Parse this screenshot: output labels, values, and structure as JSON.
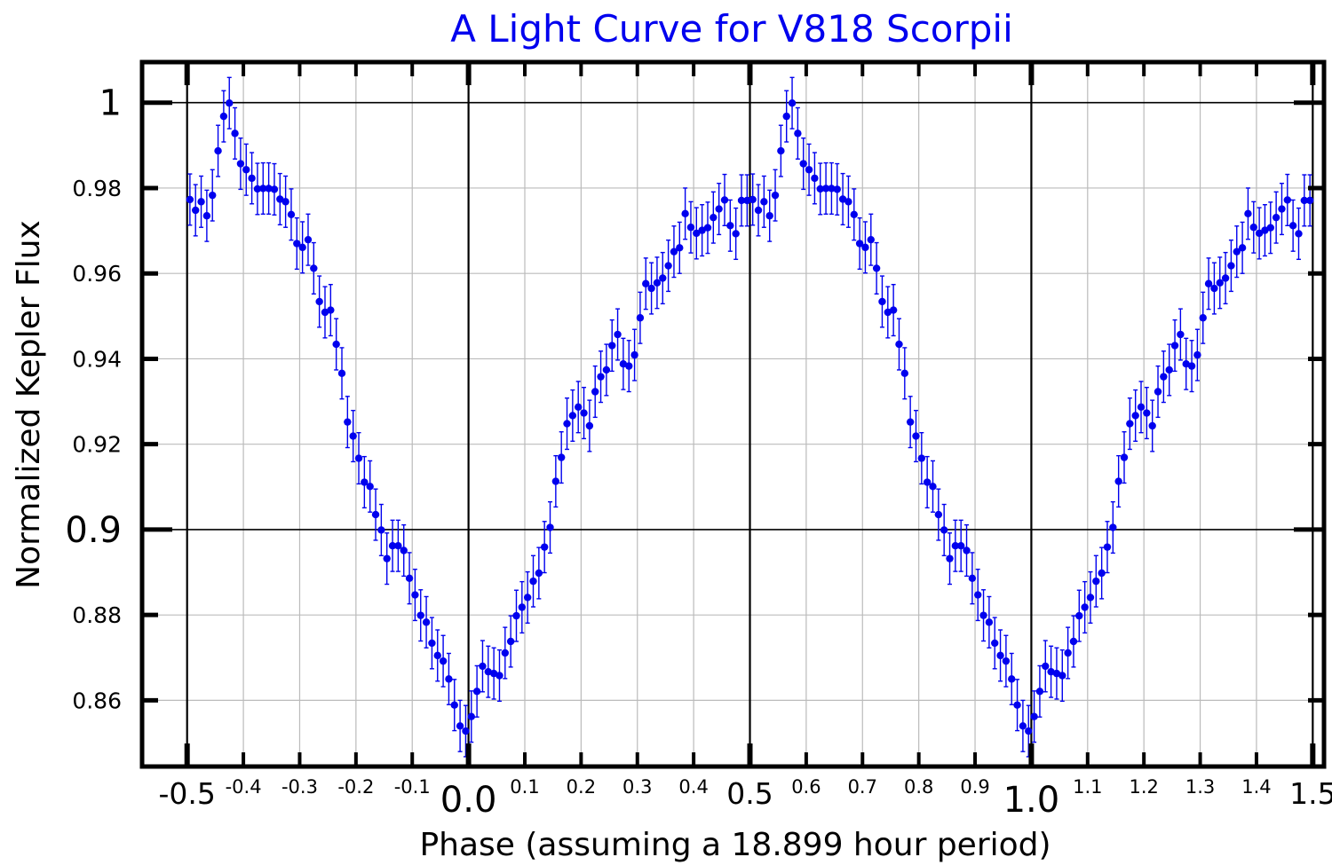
{
  "chart_data": {
    "type": "scatter",
    "title": "A Light Curve for V818 Scorpii",
    "xlabel": "Phase (assuming a 18.899 hour period)",
    "ylabel": "Normalized Kepler Flux",
    "xlim": [
      -0.58,
      1.52
    ],
    "ylim": [
      0.8445,
      1.0095
    ],
    "grid": true,
    "legend": "none",
    "x_ticks": [
      {
        "value": -0.5,
        "label": "-0.5",
        "size": "med"
      },
      {
        "value": -0.4,
        "label": "-0.4",
        "size": "small"
      },
      {
        "value": -0.3,
        "label": "-0.3",
        "size": "small"
      },
      {
        "value": -0.2,
        "label": "-0.2",
        "size": "small"
      },
      {
        "value": -0.1,
        "label": "-0.1",
        "size": "small"
      },
      {
        "value": 0.0,
        "label": "0.0",
        "size": "big"
      },
      {
        "value": 0.1,
        "label": "0.1",
        "size": "small"
      },
      {
        "value": 0.2,
        "label": "0.2",
        "size": "small"
      },
      {
        "value": 0.3,
        "label": "0.3",
        "size": "small"
      },
      {
        "value": 0.4,
        "label": "0.4",
        "size": "small"
      },
      {
        "value": 0.5,
        "label": "0.5",
        "size": "med"
      },
      {
        "value": 0.6,
        "label": "0.6",
        "size": "small"
      },
      {
        "value": 0.7,
        "label": "0.7",
        "size": "small"
      },
      {
        "value": 0.8,
        "label": "0.8",
        "size": "small"
      },
      {
        "value": 0.9,
        "label": "0.9",
        "size": "small"
      },
      {
        "value": 1.0,
        "label": "1.0",
        "size": "big"
      },
      {
        "value": 1.1,
        "label": "1.1",
        "size": "small"
      },
      {
        "value": 1.2,
        "label": "1.2",
        "size": "small"
      },
      {
        "value": 1.3,
        "label": "1.3",
        "size": "small"
      },
      {
        "value": 1.4,
        "label": "1.4",
        "size": "small"
      },
      {
        "value": 1.5,
        "label": "1.5",
        "size": "med"
      }
    ],
    "y_ticks": [
      {
        "value": 1.0,
        "label": "1",
        "size": "big"
      },
      {
        "value": 0.98,
        "label": "0.98",
        "size": "small"
      },
      {
        "value": 0.96,
        "label": "0.96",
        "size": "small"
      },
      {
        "value": 0.94,
        "label": "0.94",
        "size": "small"
      },
      {
        "value": 0.92,
        "label": "0.92",
        "size": "small"
      },
      {
        "value": 0.9,
        "label": "0.9",
        "size": "med"
      },
      {
        "value": 0.88,
        "label": "0.88",
        "size": "small"
      },
      {
        "value": 0.86,
        "label": "0.86",
        "size": "small"
      }
    ],
    "major_x": [
      -0.5,
      0.0,
      0.5,
      1.0,
      1.5
    ],
    "major_y": [
      1.0,
      0.9
    ],
    "colors": {
      "points": "#0000ee",
      "title": "#0000ee",
      "grid": "#bbbbbb",
      "major_grid": "#000000",
      "frame": "#000000"
    },
    "series": [
      {
        "repeat_period": 1.0,
        "x": [
          -0.495,
          -0.485,
          -0.475,
          -0.465,
          -0.455,
          -0.445,
          -0.435,
          -0.425,
          -0.415,
          -0.405,
          -0.395,
          -0.385,
          -0.375,
          -0.365,
          -0.355,
          -0.345,
          -0.335,
          -0.325,
          -0.315,
          -0.305,
          -0.295,
          -0.285,
          -0.275,
          -0.265,
          -0.255,
          -0.245,
          -0.235,
          -0.225,
          -0.215,
          -0.205,
          -0.195,
          -0.185,
          -0.175,
          -0.165,
          -0.155,
          -0.145,
          -0.135,
          -0.125,
          -0.115,
          -0.105,
          -0.095,
          -0.085,
          -0.075,
          -0.065,
          -0.055,
          -0.045,
          -0.035,
          -0.025,
          -0.015,
          -0.005,
          0.005,
          0.015,
          0.025,
          0.035,
          0.045,
          0.055,
          0.065,
          0.075,
          0.085,
          0.095,
          0.105,
          0.115,
          0.125,
          0.135,
          0.145,
          0.155,
          0.165,
          0.175,
          0.185,
          0.195,
          0.205,
          0.215,
          0.225,
          0.235,
          0.245,
          0.255,
          0.265,
          0.275,
          0.285,
          0.295,
          0.305,
          0.315,
          0.325,
          0.335,
          0.345,
          0.355,
          0.365,
          0.375,
          0.385,
          0.395,
          0.405,
          0.415,
          0.425,
          0.435,
          0.445,
          0.455,
          0.465,
          0.475,
          0.485,
          0.495
        ],
        "y": [
          0.9773,
          0.9748,
          0.9768,
          0.9735,
          0.9783,
          0.9887,
          0.9968,
          0.9999,
          0.9928,
          0.9857,
          0.9843,
          0.9823,
          0.9798,
          0.9799,
          0.9799,
          0.9797,
          0.9774,
          0.9768,
          0.9738,
          0.967,
          0.9661,
          0.9679,
          0.9612,
          0.9534,
          0.9509,
          0.9514,
          0.9434,
          0.9366,
          0.9252,
          0.9219,
          0.9167,
          0.9111,
          0.9101,
          0.9035,
          0.8999,
          0.8932,
          0.8962,
          0.8962,
          0.8951,
          0.8886,
          0.8847,
          0.8799,
          0.8783,
          0.8734,
          0.8705,
          0.8692,
          0.865,
          0.8589,
          0.854,
          0.8528,
          0.8562,
          0.8621,
          0.868,
          0.8667,
          0.8663,
          0.8658,
          0.8711,
          0.8738,
          0.8798,
          0.8818,
          0.8841,
          0.8879,
          0.8898,
          0.8959,
          0.9005,
          0.9113,
          0.9169,
          0.9248,
          0.9267,
          0.9287,
          0.9273,
          0.9243,
          0.9323,
          0.9358,
          0.9374,
          0.9431,
          0.9457,
          0.9388,
          0.9383,
          0.9409,
          0.9496,
          0.9576,
          0.9565,
          0.9578,
          0.9589,
          0.9618,
          0.9651,
          0.966,
          0.974,
          0.9708,
          0.9694,
          0.9701,
          0.9707,
          0.9731,
          0.9751,
          0.9772,
          0.9712,
          0.9693,
          0.9771,
          0.9771
        ],
        "yerr": [
          0.006,
          0.006,
          0.006,
          0.006,
          0.006,
          0.006,
          0.006,
          0.006,
          0.006,
          0.006,
          0.006,
          0.006,
          0.006,
          0.006,
          0.006,
          0.006,
          0.006,
          0.006,
          0.006,
          0.006,
          0.006,
          0.006,
          0.006,
          0.006,
          0.006,
          0.006,
          0.006,
          0.006,
          0.006,
          0.006,
          0.006,
          0.006,
          0.006,
          0.006,
          0.006,
          0.006,
          0.006,
          0.006,
          0.006,
          0.006,
          0.006,
          0.006,
          0.006,
          0.006,
          0.006,
          0.006,
          0.006,
          0.006,
          0.006,
          0.006,
          0.006,
          0.006,
          0.006,
          0.006,
          0.006,
          0.006,
          0.006,
          0.006,
          0.006,
          0.006,
          0.006,
          0.006,
          0.006,
          0.006,
          0.006,
          0.006,
          0.006,
          0.006,
          0.006,
          0.006,
          0.006,
          0.006,
          0.006,
          0.006,
          0.006,
          0.006,
          0.006,
          0.006,
          0.006,
          0.006,
          0.006,
          0.006,
          0.006,
          0.006,
          0.006,
          0.006,
          0.006,
          0.006,
          0.006,
          0.006,
          0.006,
          0.006,
          0.006,
          0.006,
          0.006,
          0.006,
          0.006,
          0.006,
          0.006,
          0.006
        ]
      }
    ]
  }
}
